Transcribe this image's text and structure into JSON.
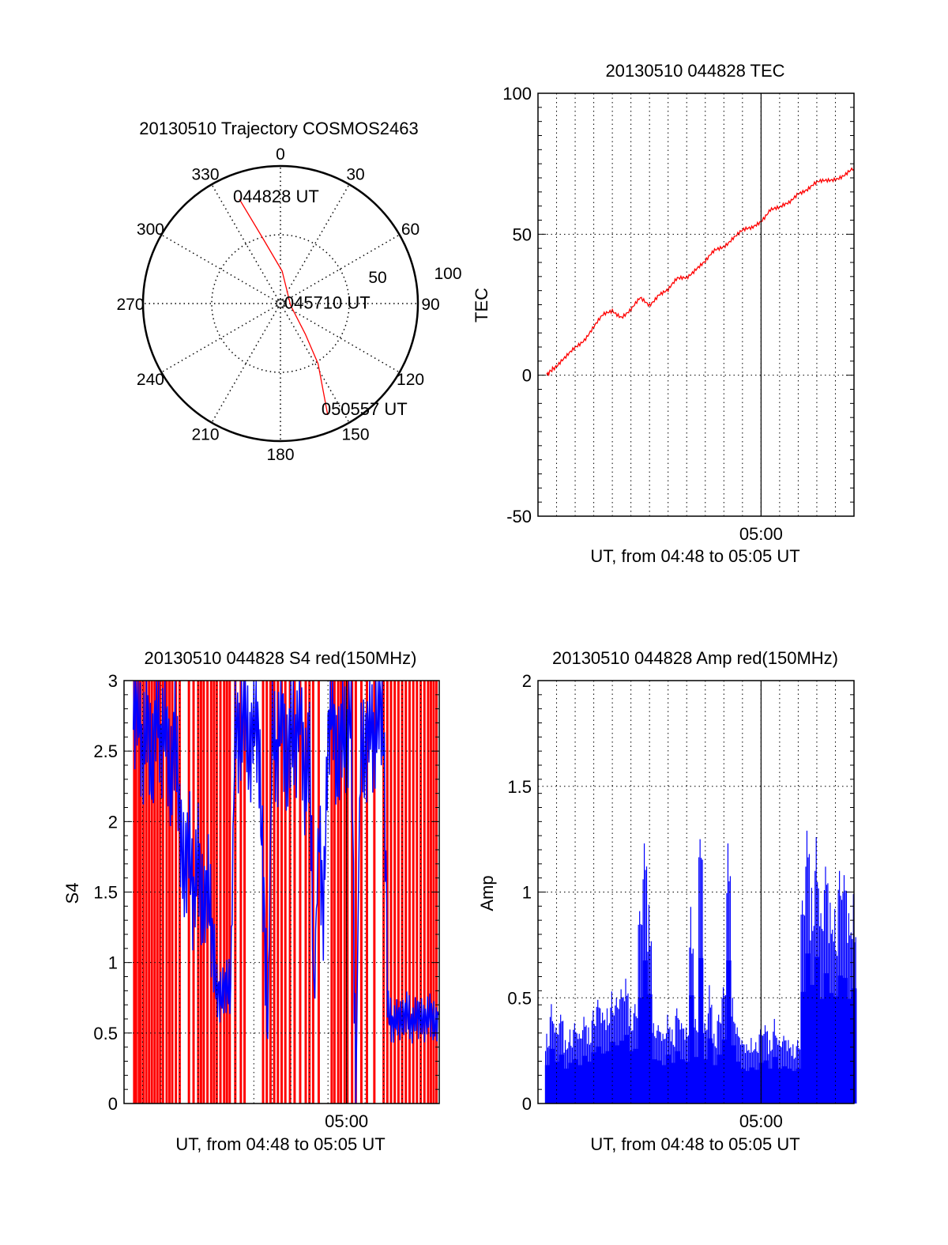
{
  "colors": {
    "red": "#ff0000",
    "blue": "#0000ff",
    "axis": "#000000"
  },
  "chart_data": [
    {
      "type": "polar",
      "id": "trajectory",
      "title": "20130510 Trajectory COSMOS2463",
      "angle_labels": [
        "0",
        "30",
        "60",
        "90",
        "120",
        "150",
        "180",
        "210",
        "240",
        "270",
        "300",
        "330"
      ],
      "angles_deg": [
        0,
        30,
        60,
        90,
        120,
        150,
        180,
        210,
        240,
        270,
        300,
        330
      ],
      "radial_labels": [
        "50",
        "100"
      ],
      "radial_values": [
        50,
        100
      ],
      "rlim": [
        0,
        100
      ],
      "series": [
        {
          "name": "trajectory",
          "color": "#ff0000",
          "points_az_r": [
            [
              338.5,
              81.6
            ],
            [
              345,
              48.8
            ],
            [
              3,
              23.6
            ],
            [
              100,
              7.5
            ],
            [
              141,
              29
            ],
            [
              148,
              51.7
            ],
            [
              157,
              88
            ]
          ]
        }
      ],
      "annotations": [
        {
          "text": "044828 UT",
          "az": 338.5,
          "r": 81.6
        },
        {
          "text": "045710 UT",
          "az": 100,
          "r": 7.5
        },
        {
          "text": "050557 UT",
          "az": 157,
          "r": 88
        }
      ]
    },
    {
      "type": "line",
      "id": "tec",
      "title": "20130510 044828 TEC",
      "xlabel": "UT, from 04:48 to 05:05 UT",
      "ylabel": "TEC",
      "x_unit": "minutes after 04:48",
      "xlim": [
        0,
        17
      ],
      "ylim": [
        -50,
        100
      ],
      "yticks": [
        -50,
        0,
        50,
        100
      ],
      "ytick_labels": [
        "-50",
        "0",
        "50",
        "100"
      ],
      "xticks": [
        12
      ],
      "xtick_labels": [
        "05:00"
      ],
      "grid": true,
      "series": [
        {
          "name": "TEC",
          "color": "#ff0000",
          "x": [
            0.47,
            0.75,
            1.0,
            1.5,
            2.0,
            2.5,
            3.0,
            3.5,
            4.0,
            4.5,
            5.0,
            5.5,
            6.0,
            6.5,
            7.0,
            7.5,
            8.0,
            8.5,
            9.0,
            9.5,
            10.0,
            10.5,
            11.0,
            11.5,
            12.0,
            12.5,
            13.0,
            13.5,
            14.0,
            14.5,
            15.0,
            15.5,
            16.0,
            16.5,
            17.0
          ],
          "y": [
            0,
            2,
            3,
            6,
            10,
            13,
            17,
            21,
            23,
            21,
            23,
            27,
            25,
            29,
            30,
            34,
            35,
            38,
            40,
            44,
            46,
            49,
            51,
            52,
            55,
            59,
            59,
            61,
            65,
            66,
            68,
            69,
            70,
            71,
            73
          ]
        }
      ]
    },
    {
      "type": "bar",
      "id": "s4",
      "title": "20130510 044828 S4 red(150MHz)",
      "xlabel": "UT, from 04:48 to 05:05 UT",
      "ylabel": "S4",
      "x_unit": "minutes after 04:48",
      "xlim": [
        0,
        17
      ],
      "ylim": [
        0,
        3
      ],
      "yticks": [
        0,
        0.5,
        1,
        1.5,
        2,
        2.5,
        3
      ],
      "ytick_labels": [
        "0",
        "0.5",
        "1",
        "1.5",
        "2",
        "2.5",
        "3"
      ],
      "xticks": [
        12
      ],
      "xtick_labels": [
        "05:00"
      ],
      "grid": true,
      "series": [
        {
          "name": "red",
          "color": "#ff0000",
          "style": "vertical-lines",
          "x": [
            0.55,
            0.65,
            0.8,
            0.9,
            1.05,
            1.2,
            1.35,
            1.5,
            1.65,
            1.8,
            1.95,
            2.1,
            2.3,
            2.45,
            2.6,
            2.8,
            3.0,
            3.5,
            3.75,
            4.0,
            4.15,
            4.3,
            4.5,
            4.7,
            4.85,
            5.0,
            5.2,
            5.4,
            5.55,
            5.7,
            6.0,
            6.3,
            6.5,
            7.5,
            7.7,
            7.9,
            8.1,
            8.3,
            8.5,
            8.7,
            8.95,
            9.2,
            9.5,
            9.8,
            10.0,
            10.2,
            10.5,
            11.2,
            11.35,
            11.55,
            11.7,
            11.9,
            12.05,
            12.3,
            12.5,
            12.8,
            13.1,
            13.5,
            14.0,
            14.2,
            14.4,
            14.6,
            14.8,
            15.0,
            15.2,
            15.4,
            15.6,
            15.8,
            16.0,
            16.2,
            16.4,
            16.55,
            16.7,
            16.85
          ],
          "y": [
            3,
            3,
            3,
            3,
            3,
            3,
            3,
            3,
            3,
            3,
            3,
            3,
            3,
            3,
            3,
            3,
            3,
            3,
            3,
            3,
            3,
            3,
            3,
            3,
            3,
            3,
            3,
            3,
            3,
            3,
            3,
            3,
            3,
            3,
            3,
            3,
            3,
            3,
            3,
            3,
            3,
            3,
            3,
            3,
            3,
            3,
            3,
            3,
            3,
            3,
            3,
            3,
            3,
            3,
            3,
            3,
            3,
            3,
            3,
            3,
            3,
            3,
            3,
            3,
            3,
            3,
            3,
            3,
            3,
            3,
            3,
            3,
            3,
            3
          ]
        },
        {
          "name": "blue",
          "color": "#0000ff",
          "style": "line",
          "x": [
            0.5,
            0.75,
            1.0,
            1.25,
            1.5,
            1.75,
            2.0,
            2.25,
            2.5,
            2.75,
            3.0,
            3.25,
            3.5,
            3.75,
            4.0,
            4.25,
            4.5,
            4.75,
            5.0,
            5.25,
            5.5,
            5.75,
            6.0,
            6.25,
            6.5,
            6.75,
            7.0,
            7.25,
            7.5,
            7.75,
            8.0,
            8.25,
            8.5,
            8.75,
            9.0,
            9.25,
            9.5,
            9.75,
            10.0,
            10.25,
            10.5,
            10.75,
            11.0,
            11.25,
            11.5,
            11.75,
            12.0,
            12.25,
            12.5,
            12.75,
            13.0,
            13.25,
            13.5,
            13.75,
            14.0,
            14.25,
            14.5,
            14.75,
            15.0,
            15.25,
            15.5,
            15.75,
            16.0,
            16.25,
            16.5,
            16.75,
            17.0
          ],
          "y": [
            2.7,
            2.9,
            2.4,
            2.8,
            2.3,
            2.9,
            2.5,
            2.8,
            2.2,
            2.7,
            2.0,
            1.6,
            1.9,
            1.4,
            1.8,
            1.3,
            1.6,
            1.2,
            0.8,
            0.75,
            0.85,
            0.8,
            2.8,
            2.5,
            2.9,
            2.4,
            2.8,
            2.6,
            1.6,
            0.5,
            2.7,
            2.4,
            2.9,
            2.3,
            2.7,
            2.5,
            2.9,
            2.2,
            2.6,
            0.7,
            2.0,
            1.3,
            2.6,
            2.9,
            2.3,
            2.7,
            2.5,
            2.9,
            0.0,
            2.6,
            2.4,
            2.8,
            2.5,
            2.9,
            2.6,
            0.65,
            0.55,
            0.62,
            0.58,
            0.66,
            0.55,
            0.63,
            0.6,
            0.58,
            0.65,
            0.55,
            0.6
          ]
        }
      ]
    },
    {
      "type": "bar",
      "id": "amp",
      "title": "20130510 044828 Amp red(150MHz)",
      "xlabel": "UT, from 04:48 to 05:05 UT",
      "ylabel": "Amp",
      "x_unit": "minutes after 04:48",
      "xlim": [
        0,
        17
      ],
      "ylim": [
        0,
        2
      ],
      "yticks": [
        0,
        0.5,
        1,
        1.5,
        2
      ],
      "ytick_labels": [
        "0",
        "0.5",
        "1",
        "1.5",
        "2"
      ],
      "xticks": [
        12
      ],
      "xtick_labels": [
        "05:00"
      ],
      "grid": true,
      "series": [
        {
          "name": "amplitude",
          "color": "#0000ff",
          "x": [
            0.5,
            0.75,
            1.0,
            1.25,
            1.5,
            1.75,
            2.0,
            2.25,
            2.5,
            2.75,
            3.0,
            3.25,
            3.5,
            3.75,
            4.0,
            4.25,
            4.5,
            4.75,
            5.0,
            5.25,
            5.5,
            5.75,
            6.0,
            6.25,
            6.5,
            6.75,
            7.0,
            7.25,
            7.5,
            7.75,
            8.0,
            8.25,
            8.5,
            8.75,
            9.0,
            9.25,
            9.5,
            9.75,
            10.0,
            10.25,
            10.5,
            10.75,
            11.0,
            11.25,
            11.5,
            11.75,
            12.0,
            12.25,
            12.5,
            12.75,
            13.0,
            13.25,
            13.5,
            13.75,
            14.0,
            14.25,
            14.5,
            14.75,
            15.0,
            15.25,
            15.5,
            15.75,
            16.0,
            16.25,
            16.5,
            16.75,
            17.0
          ],
          "y": [
            0.33,
            0.47,
            0.36,
            0.42,
            0.3,
            0.35,
            0.38,
            0.33,
            0.41,
            0.36,
            0.44,
            0.49,
            0.43,
            0.45,
            0.53,
            0.5,
            0.54,
            0.59,
            0.45,
            0.47,
            0.91,
            1.23,
            0.94,
            0.38,
            0.37,
            0.33,
            0.42,
            0.35,
            0.45,
            0.38,
            0.36,
            0.93,
            0.4,
            1.25,
            0.38,
            0.56,
            0.33,
            0.42,
            0.55,
            1.23,
            0.5,
            0.36,
            0.3,
            0.28,
            0.31,
            0.29,
            0.35,
            0.37,
            0.3,
            0.4,
            0.3,
            0.32,
            0.3,
            0.28,
            0.3,
            0.96,
            1.29,
            1.02,
            1.26,
            0.9,
            1.12,
            0.95,
            0.92,
            1.1,
            1.08,
            0.9,
            0.99
          ]
        }
      ]
    }
  ]
}
